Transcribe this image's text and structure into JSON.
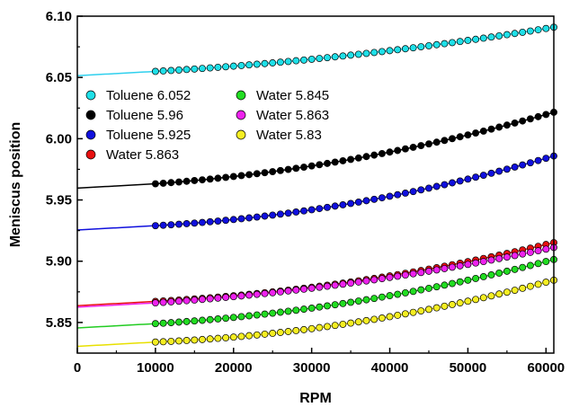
{
  "chart_data": {
    "type": "scatter",
    "xlabel": "RPM",
    "ylabel": "Meniscus position",
    "xlim": [
      0,
      61000
    ],
    "ylim": [
      5.825,
      6.1
    ],
    "x_ticks": [
      0,
      10000,
      20000,
      30000,
      40000,
      50000,
      60000
    ],
    "y_ticks": [
      5.85,
      5.9,
      5.95,
      6.0,
      6.05,
      6.1
    ],
    "x_tick_labels": [
      "0",
      "10000",
      "20000",
      "30000",
      "40000",
      "50000",
      "60000"
    ],
    "y_tick_labels": [
      "5.85",
      "5.90",
      "5.95",
      "6.00",
      "6.05",
      "6.10"
    ],
    "grid": false,
    "legend_position": "top-left",
    "series_note": "Markers sampled every 1000 RPM from 10000 to 61000; smooth fit line from 0 to 61000.",
    "series": [
      {
        "name": "Toluene 6.052",
        "marker_color": "#1fe0e8",
        "line_color": "#2fd0ee",
        "x": [
          10000,
          20000,
          30000,
          40000,
          50000,
          60000
        ],
        "values": [
          6.055,
          6.059,
          6.065,
          6.072,
          6.08,
          6.09
        ]
      },
      {
        "name": "Toluene 5.96",
        "marker_color": "#000000",
        "line_color": "#000000",
        "x": [
          10000,
          20000,
          30000,
          40000,
          50000,
          60000
        ],
        "values": [
          5.964,
          5.968,
          5.977,
          5.99,
          6.004,
          6.019
        ]
      },
      {
        "name": "Toluene 5.925",
        "marker_color": "#1010dd",
        "line_color": "#1010dd",
        "x": [
          10000,
          20000,
          30000,
          40000,
          50000,
          60000
        ],
        "values": [
          5.929,
          5.934,
          5.942,
          5.953,
          5.967,
          5.984
        ]
      },
      {
        "name": "Water 5.863",
        "marker_color": "#e81010",
        "line_color": "#e81010",
        "x": [
          10000,
          20000,
          30000,
          40000,
          50000,
          60000
        ],
        "values": [
          5.867,
          5.872,
          5.879,
          5.888,
          5.899,
          5.914
        ]
      },
      {
        "name": "Water 5.845",
        "marker_color": "#22dd22",
        "line_color": "#22cc22",
        "x": [
          10000,
          20000,
          30000,
          40000,
          50000,
          60000
        ],
        "values": [
          5.849,
          5.854,
          5.862,
          5.872,
          5.884,
          5.9
        ]
      },
      {
        "name": "Water 5.863",
        "marker_color": "#ee22ee",
        "line_color": "#ee22ee",
        "x": [
          10000,
          20000,
          30000,
          40000,
          50000,
          60000
        ],
        "values": [
          5.866,
          5.871,
          5.878,
          5.887,
          5.897,
          5.91
        ]
      },
      {
        "name": "Water 5.83",
        "marker_color": "#f5ee22",
        "line_color": "#e8e000",
        "x": [
          10000,
          20000,
          30000,
          40000,
          50000,
          60000
        ],
        "values": [
          5.834,
          5.838,
          5.845,
          5.855,
          5.867,
          5.883
        ]
      }
    ],
    "legend_columns": [
      [
        0,
        1,
        2,
        3
      ],
      [
        4,
        5,
        6
      ]
    ]
  }
}
